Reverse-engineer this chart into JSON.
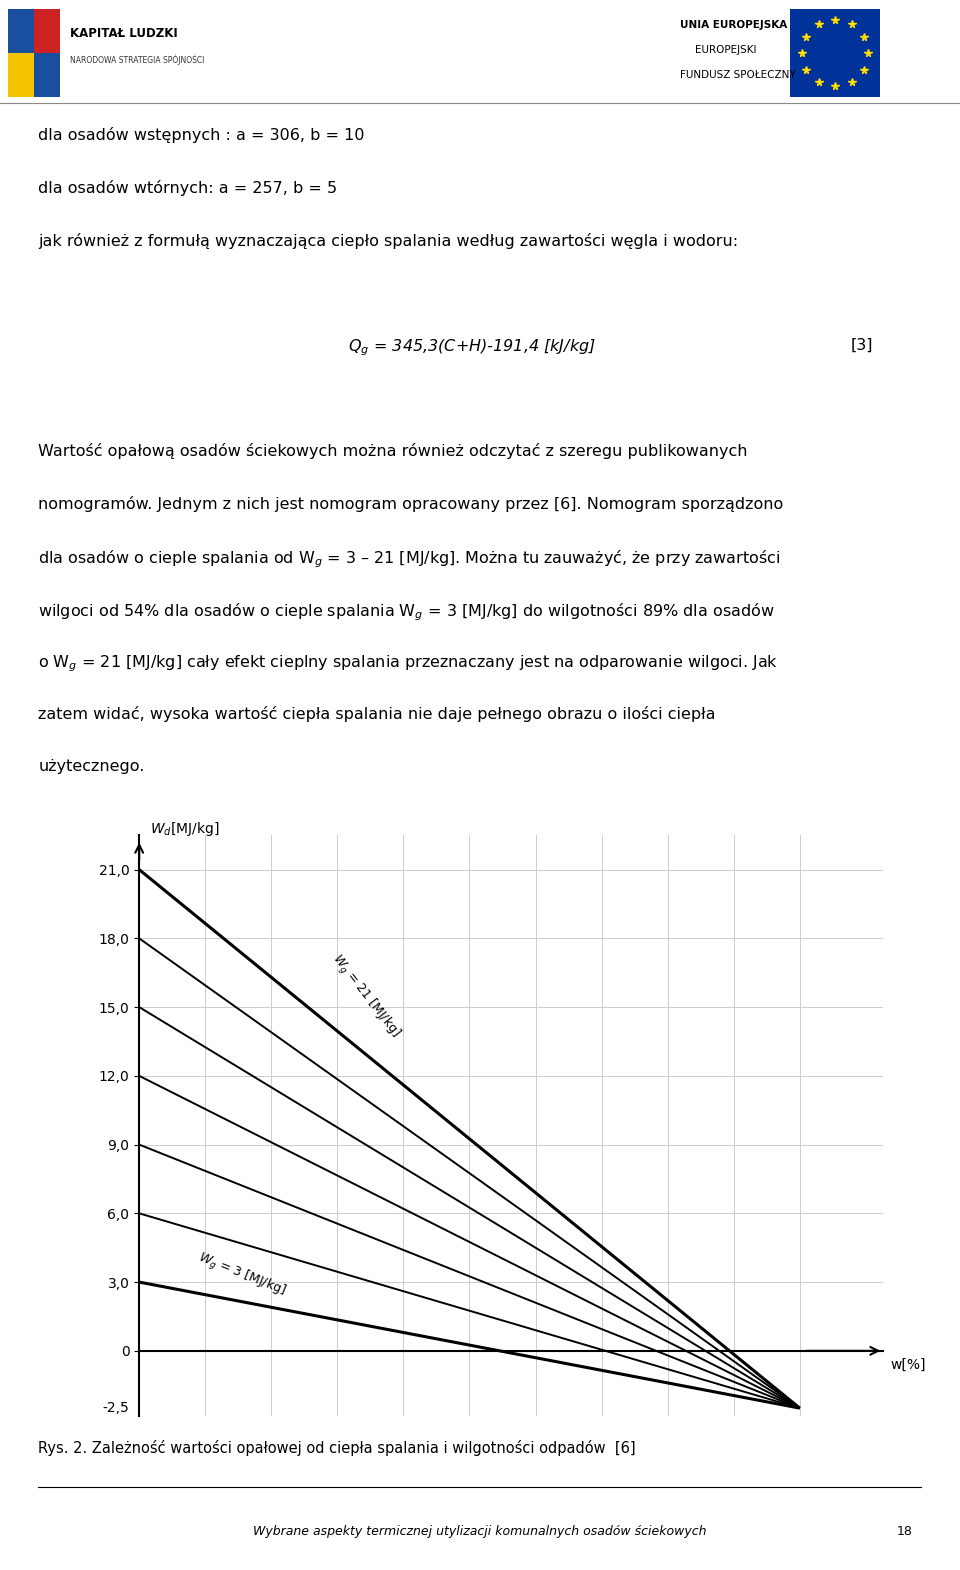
{
  "title": "Rys. 2. Zależność wartości opałowej od ciepła spalania i wilgotności odpadów  [6]",
  "ylim_chart": [
    -2.8,
    22.5
  ],
  "xlim_chart": [
    0,
    107
  ],
  "yticks": [
    0,
    3.0,
    6.0,
    9.0,
    12.0,
    15.0,
    18.0,
    21.0
  ],
  "ytick_labels": [
    "0",
    "3,0",
    "6,0",
    "9,0",
    "12,0",
    "15,0",
    "18,0",
    "21,0"
  ],
  "wg_values": [
    3,
    6,
    9,
    12,
    15,
    18,
    21
  ],
  "convergence_x": 95,
  "convergence_y": -2.5,
  "line_color": "#000000",
  "grid_color": "#cccccc",
  "background_color": "#ffffff",
  "footer_text": "Wybrane aspekty termicznej utylizacji komunalnych osadów ściekowych",
  "page_number": "18",
  "header_left_title": "KAPITAŁ LUDZKI",
  "header_left_sub": "NARODOWA STRATEGIA SPÓJNOŚCI",
  "header_right1": "UNIA EUROPEJSKA",
  "header_right2": "EUROPEJSKI",
  "header_right3": "FUNDUSZ SPOŁECZNY",
  "text_block": [
    {
      "text": "dla osadów wstępnych : a = 306, b = 10",
      "indent": false,
      "formula": false,
      "blank": false
    },
    {
      "text": "dla osadów wtórnych: a = 257, b = 5",
      "indent": false,
      "formula": false,
      "blank": false
    },
    {
      "text": "jak również z formułą wyznaczająca ciepło spalania według zawartości węgla i wodoru:",
      "indent": false,
      "formula": false,
      "blank": false
    },
    {
      "text": "",
      "indent": false,
      "formula": false,
      "blank": true
    },
    {
      "text": "Q$_g$ = 345,3(C+H)-191,4 [kJ/kg]",
      "indent": true,
      "formula": true,
      "blank": false
    },
    {
      "text": "",
      "indent": false,
      "formula": false,
      "blank": true
    },
    {
      "text": "Wartość opałową osadów ściekowych można również odczytać z szeregu publikowanych",
      "indent": false,
      "formula": false,
      "blank": false
    },
    {
      "text": "nomogramów. Jednym z nich jest nomogram opracowany przez [6]. Nomogram sporządzono",
      "indent": false,
      "formula": false,
      "blank": false
    },
    {
      "text": "dla osadów o cieple spalania od W$_g$ = 3 – 21 [MJ/kg]. Można tu zauważyć, że przy zawartości",
      "indent": false,
      "formula": false,
      "blank": false
    },
    {
      "text": "wilgoci od 54% dla osadów o cieple spalania W$_g$ = 3 [MJ/kg] do wilgotności 89% dla osadów",
      "indent": false,
      "formula": false,
      "blank": false
    },
    {
      "text": "o W$_g$ = 21 [MJ/kg] cały efekt cieplny spalania przeznaczany jest na odparowanie wilgoci. Jak",
      "indent": false,
      "formula": false,
      "blank": false
    },
    {
      "text": "zatem widać, wysoka wartość ciepła spalania nie daje pełnego obrazu o ilości ciepła",
      "indent": false,
      "formula": false,
      "blank": false
    },
    {
      "text": "użytecznego.",
      "indent": false,
      "formula": false,
      "blank": false
    }
  ]
}
